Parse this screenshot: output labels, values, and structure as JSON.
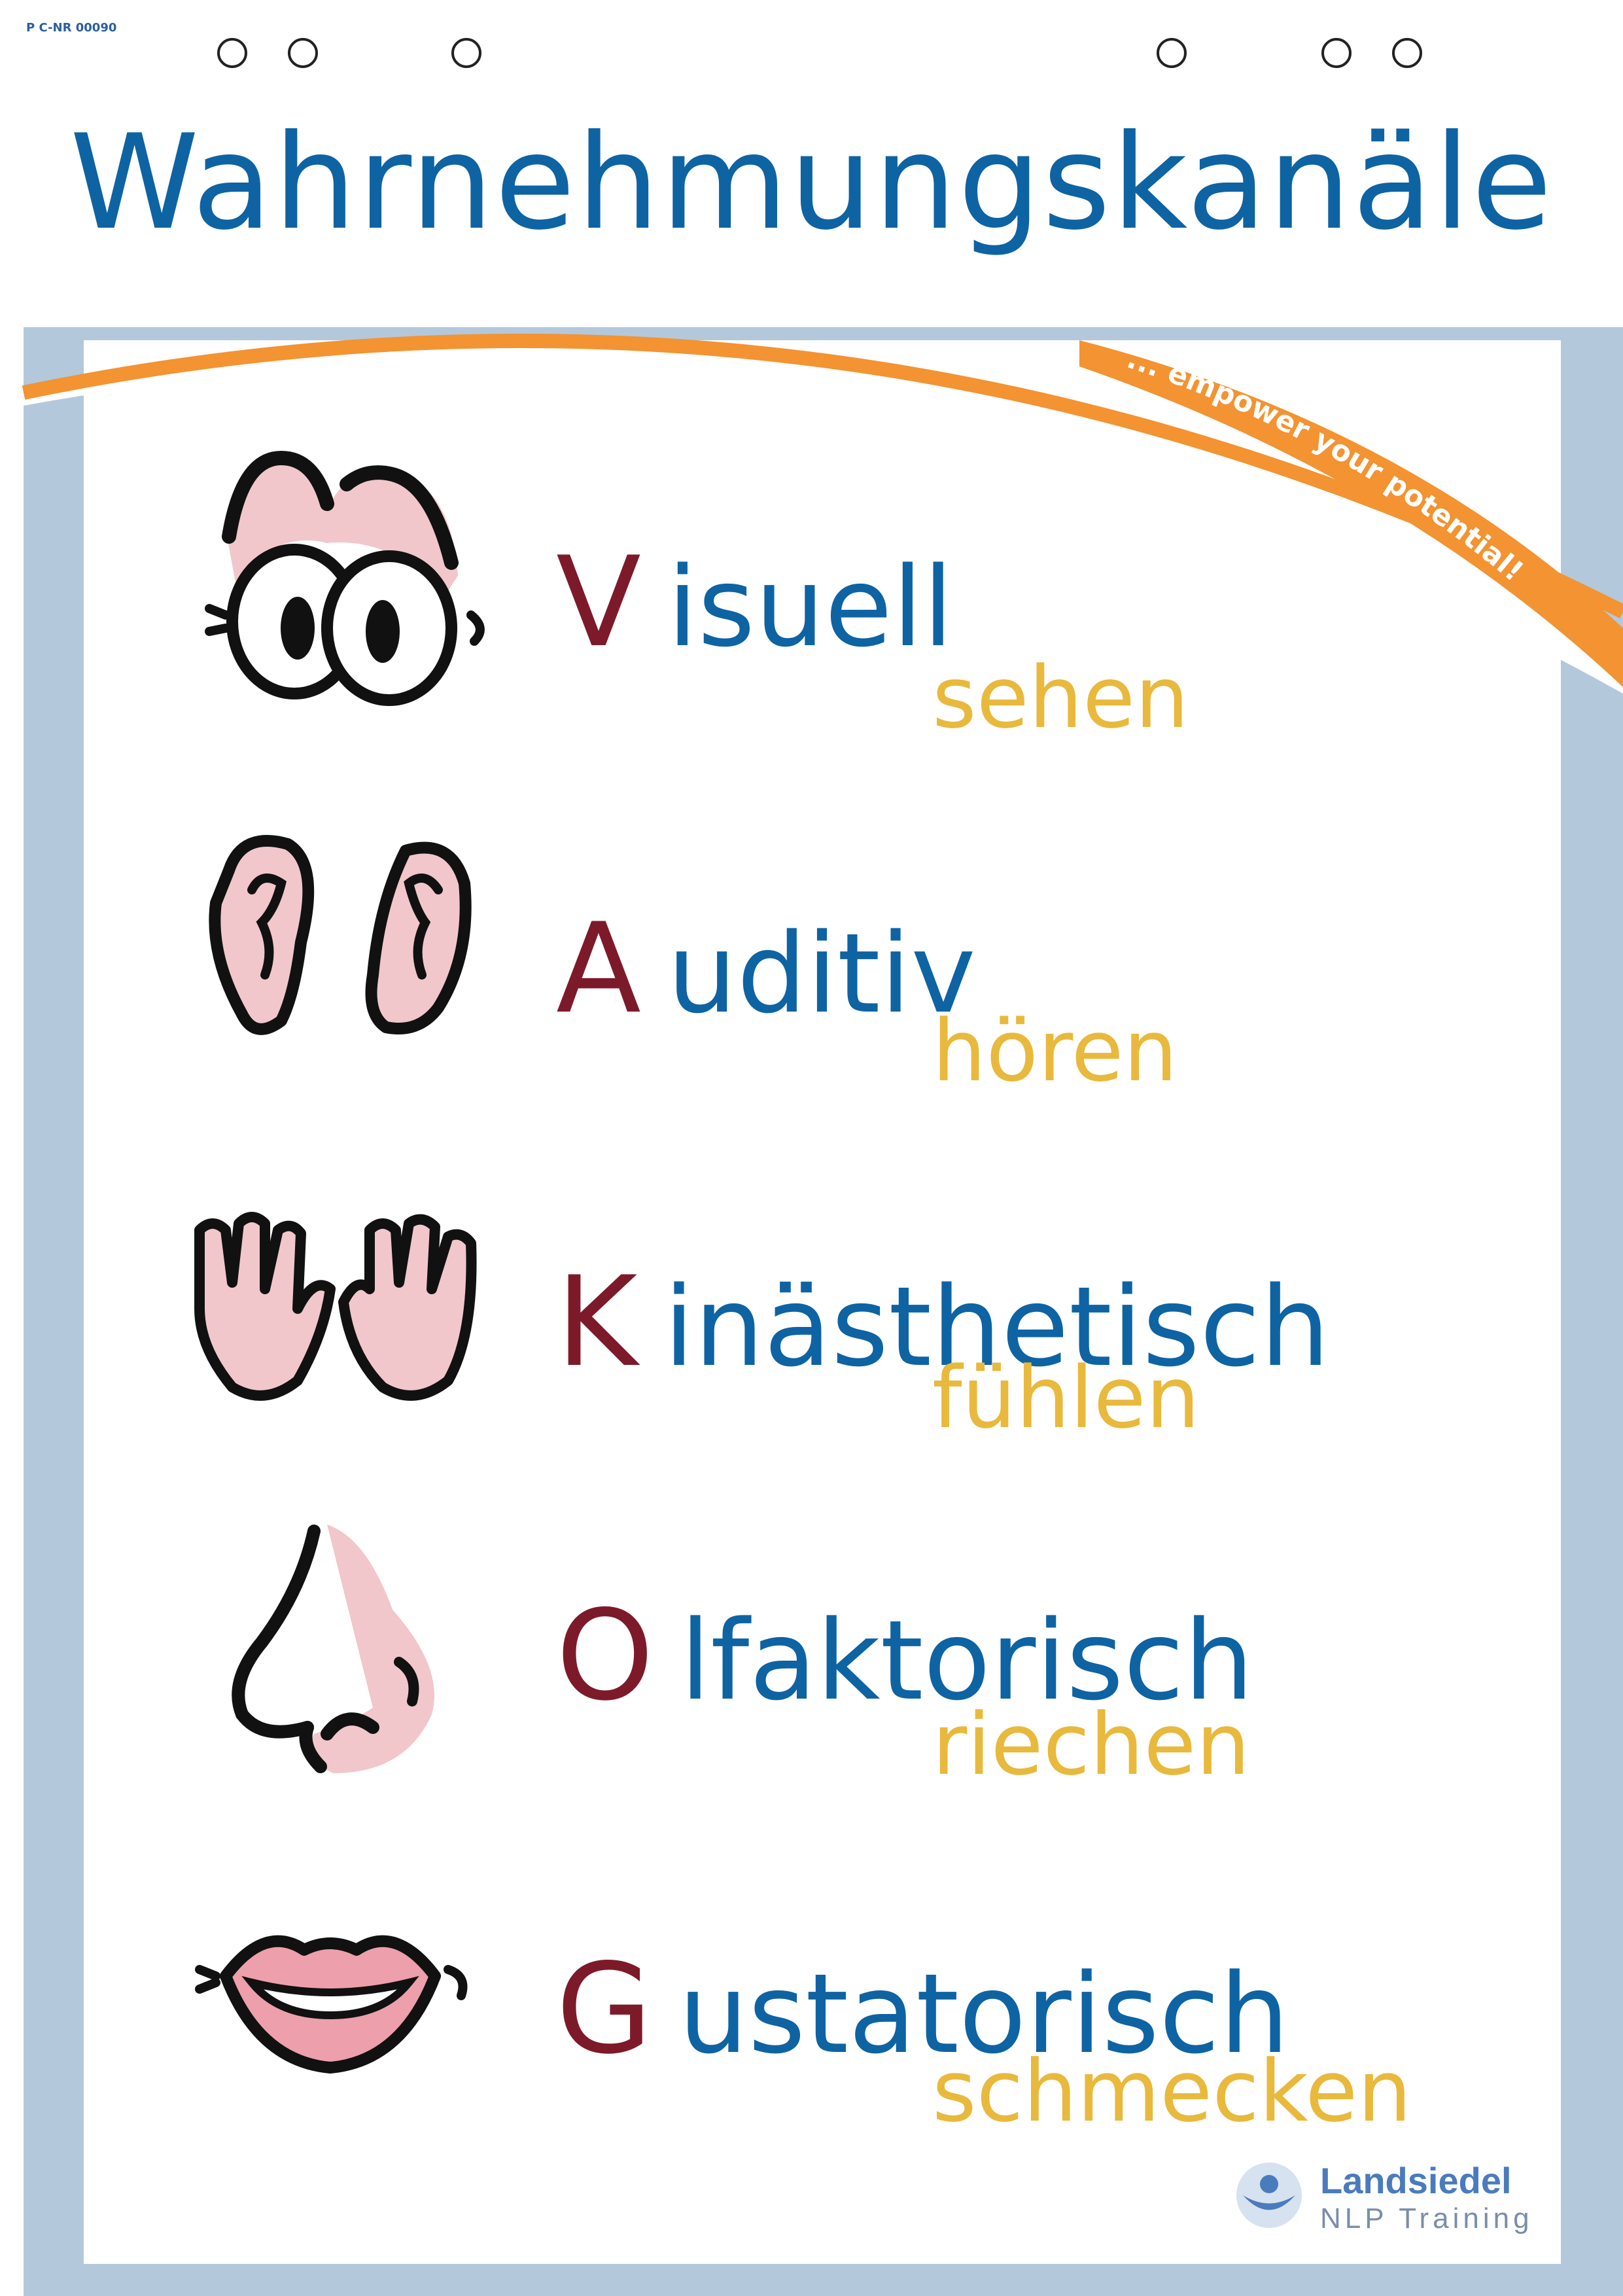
{
  "poster": {
    "code": "P C-NR 00090",
    "title": "Wahrnehmungskanäle",
    "slogan": "... empower your potential!",
    "colors": {
      "title_blue": "#0e63a3",
      "initial_red": "#7d1a2a",
      "verb_yellow": "#e8b93c",
      "arc_orange": "#f39331",
      "frame_blue": "#b4c8dc",
      "skin_pink": "#f1c7cc"
    }
  },
  "channels": [
    {
      "initial": "V",
      "rest": "isuell",
      "verb": "sehen",
      "icon": "eyes-icon"
    },
    {
      "initial": "A",
      "rest": "uditiv",
      "verb": "hören",
      "icon": "ears-icon"
    },
    {
      "initial": "K",
      "rest": "inästhetisch",
      "verb": "fühlen",
      "icon": "hands-icon"
    },
    {
      "initial": "O",
      "rest": "lfaktorisch",
      "verb": "riechen",
      "icon": "nose-icon"
    },
    {
      "initial": "G",
      "rest": "ustatorisch",
      "verb": "schmecken",
      "icon": "lips-icon"
    }
  ],
  "logo": {
    "name": "Landsiedel",
    "subtitle": "NLP Training"
  }
}
